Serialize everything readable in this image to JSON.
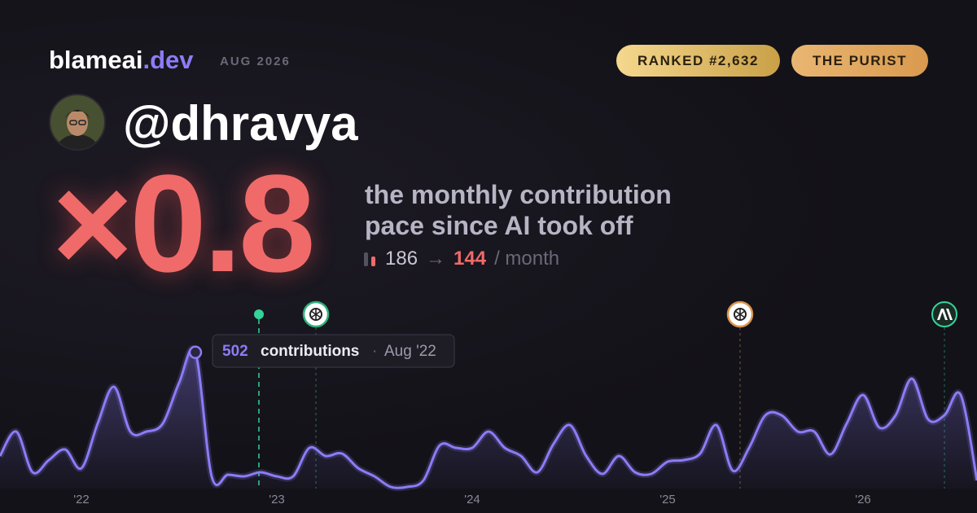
{
  "header": {
    "brand": "blameai",
    "brand_suffix": ".dev",
    "date": "AUG 2026",
    "badges": [
      "RANKED #2,632",
      "THE PURIST"
    ],
    "username": "@dhravya",
    "multiplier": "×0.8",
    "description": [
      "the monthly contribution",
      "pace since AI took off"
    ],
    "stats": {
      "before": "186",
      "arrow": "→",
      "after": "144",
      "unit": "/ month"
    }
  },
  "chart_data": {
    "type": "line",
    "color": "#8b7cf6",
    "categories": [
      null,
      null,
      null,
      null,
      null,
      "'22",
      null,
      null,
      null,
      null,
      null,
      null,
      null,
      null,
      null,
      null,
      null,
      "'23",
      null,
      null,
      null,
      null,
      null,
      null,
      null,
      null,
      null,
      null,
      null,
      "'24",
      null,
      null,
      null,
      null,
      null,
      null,
      null,
      null,
      null,
      null,
      null,
      "'25",
      null,
      null,
      null,
      null,
      null,
      null,
      null,
      null,
      null,
      null,
      null,
      "'26",
      null,
      null,
      null,
      null,
      null,
      null,
      null
    ],
    "values": [
      120,
      210,
      60,
      105,
      144,
      75,
      240,
      375,
      210,
      210,
      240,
      390,
      502,
      45,
      51,
      45,
      60,
      45,
      45,
      150,
      120,
      129,
      75,
      45,
      6,
      6,
      30,
      159,
      150,
      150,
      210,
      150,
      120,
      60,
      165,
      234,
      120,
      54,
      120,
      60,
      54,
      99,
      105,
      129,
      234,
      66,
      150,
      270,
      270,
      210,
      210,
      126,
      240,
      345,
      225,
      270,
      405,
      255,
      270,
      345,
      30
    ],
    "ylim": [
      0,
      600
    ],
    "tooltip": {
      "label": "contributions",
      "separator": "·",
      "date": "Aug '22"
    }
  }
}
